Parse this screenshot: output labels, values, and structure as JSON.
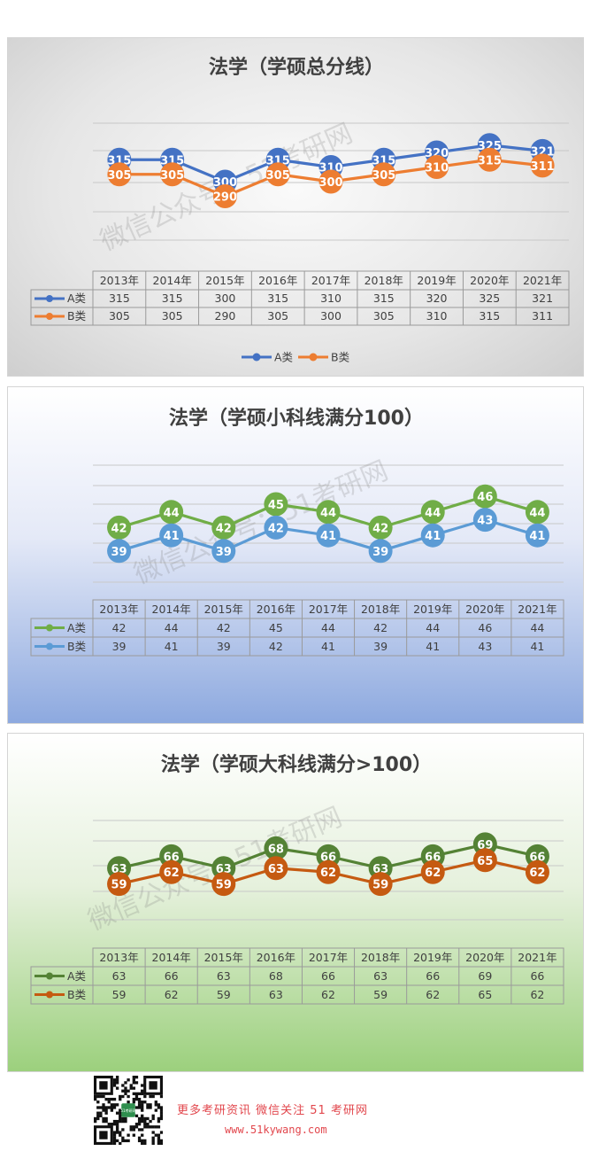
{
  "chart_data": [
    {
      "type": "line",
      "title": "法学（学硕总分线）",
      "categories": [
        "2013年",
        "2014年",
        "2015年",
        "2016年",
        "2017年",
        "2018年",
        "2019年",
        "2020年",
        "2021年"
      ],
      "series": [
        {
          "name": "A类",
          "values": [
            315,
            315,
            300,
            315,
            310,
            315,
            320,
            325,
            321
          ],
          "color": "#4472c4"
        },
        {
          "name": "B类",
          "values": [
            305,
            305,
            290,
            305,
            300,
            305,
            310,
            315,
            311
          ],
          "color": "#ed7d31"
        }
      ],
      "ylim": [
        260,
        340
      ],
      "grid": true,
      "data_table": true,
      "legend": "bottom",
      "watermark": "微信公众号：51考研网",
      "theme": "gray"
    },
    {
      "type": "line",
      "title": "法学（学硕小科线满分100）",
      "categories": [
        "2013年",
        "2014年",
        "2015年",
        "2016年",
        "2017年",
        "2018年",
        "2019年",
        "2020年",
        "2021年"
      ],
      "series": [
        {
          "name": "A类",
          "values": [
            42,
            44,
            42,
            45,
            44,
            42,
            44,
            46,
            44
          ],
          "color": "#70ad47"
        },
        {
          "name": "B类",
          "values": [
            39,
            41,
            39,
            42,
            41,
            39,
            41,
            43,
            41
          ],
          "color": "#5b9bd5"
        }
      ],
      "ylim": [
        35,
        50
      ],
      "grid": true,
      "data_table": true,
      "legend": "table",
      "watermark": "微信公众号：51考研网",
      "theme": "blue"
    },
    {
      "type": "line",
      "title": "法学（学硕大科线满分>100）",
      "categories": [
        "2013年",
        "2014年",
        "2015年",
        "2016年",
        "2017年",
        "2018年",
        "2019年",
        "2020年",
        "2021年"
      ],
      "series": [
        {
          "name": "A类",
          "values": [
            63,
            66,
            63,
            68,
            66,
            63,
            66,
            69,
            66
          ],
          "color": "#548235"
        },
        {
          "name": "B类",
          "values": [
            59,
            62,
            59,
            63,
            62,
            59,
            62,
            65,
            62
          ],
          "color": "#c55a11"
        }
      ],
      "ylim": [
        50,
        75
      ],
      "grid": true,
      "data_table": true,
      "legend": "table",
      "watermark": "微信公众号：51考研网",
      "theme": "green"
    }
  ],
  "footer": {
    "text": "更多考研资讯 微信关注 51 考研网",
    "url": "www.51kywang.com",
    "qr_label": "51考研网"
  },
  "icons": [
    "qr-code-icon"
  ]
}
